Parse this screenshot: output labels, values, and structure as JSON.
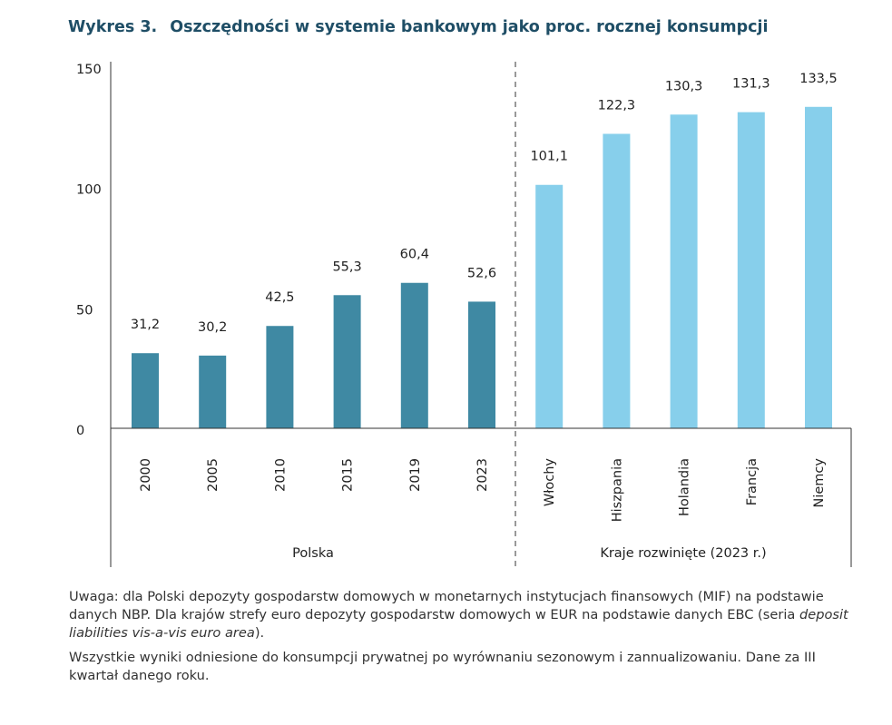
{
  "title": {
    "number": "Wykres 3.",
    "text": "Oszczędności w systemie bankowym jako proc. rocznej konsumpcji"
  },
  "chart_data": {
    "type": "bar",
    "ylim": [
      0,
      150
    ],
    "yticks": [
      "0",
      "50",
      "100",
      "150"
    ],
    "grid": false,
    "legend": "none",
    "groups": [
      {
        "label": "Polska",
        "color": "#3f89a3",
        "categories": [
          "2000",
          "2005",
          "2010",
          "2015",
          "2019",
          "2023"
        ],
        "values": [
          31.2,
          30.2,
          42.5,
          55.3,
          60.4,
          52.6
        ],
        "value_labels": [
          "31,2",
          "30,2",
          "42,5",
          "55,3",
          "60,4",
          "52,6"
        ]
      },
      {
        "label": "Kraje rozwinięte (2023 r.)",
        "color": "#87cfeb",
        "categories": [
          "Włochy",
          "Hiszpania",
          "Holandia",
          "Francja",
          "Niemcy"
        ],
        "values": [
          101.1,
          122.3,
          130.3,
          131.3,
          133.5
        ],
        "value_labels": [
          "101,1",
          "122,3",
          "130,3",
          "131,3",
          "133,5"
        ]
      }
    ]
  },
  "notes": {
    "note1_before": "Uwaga: dla Polski depozyty gospodarstw domowych w monetarnych instytucjach finansowych (MIF) na podstawie danych NBP. Dla krajów strefy euro depozyty gospodarstw domowych w EUR na podstawie danych EBC (seria ",
    "note1_italic": "deposit liabilities vis-a-vis euro area",
    "note1_after": ").",
    "note2": "Wszystkie wyniki odniesione do konsumpcji prywatnej po wyrównaniu sezonowym i zannualizowaniu. Dane za III kwartał danego roku."
  }
}
